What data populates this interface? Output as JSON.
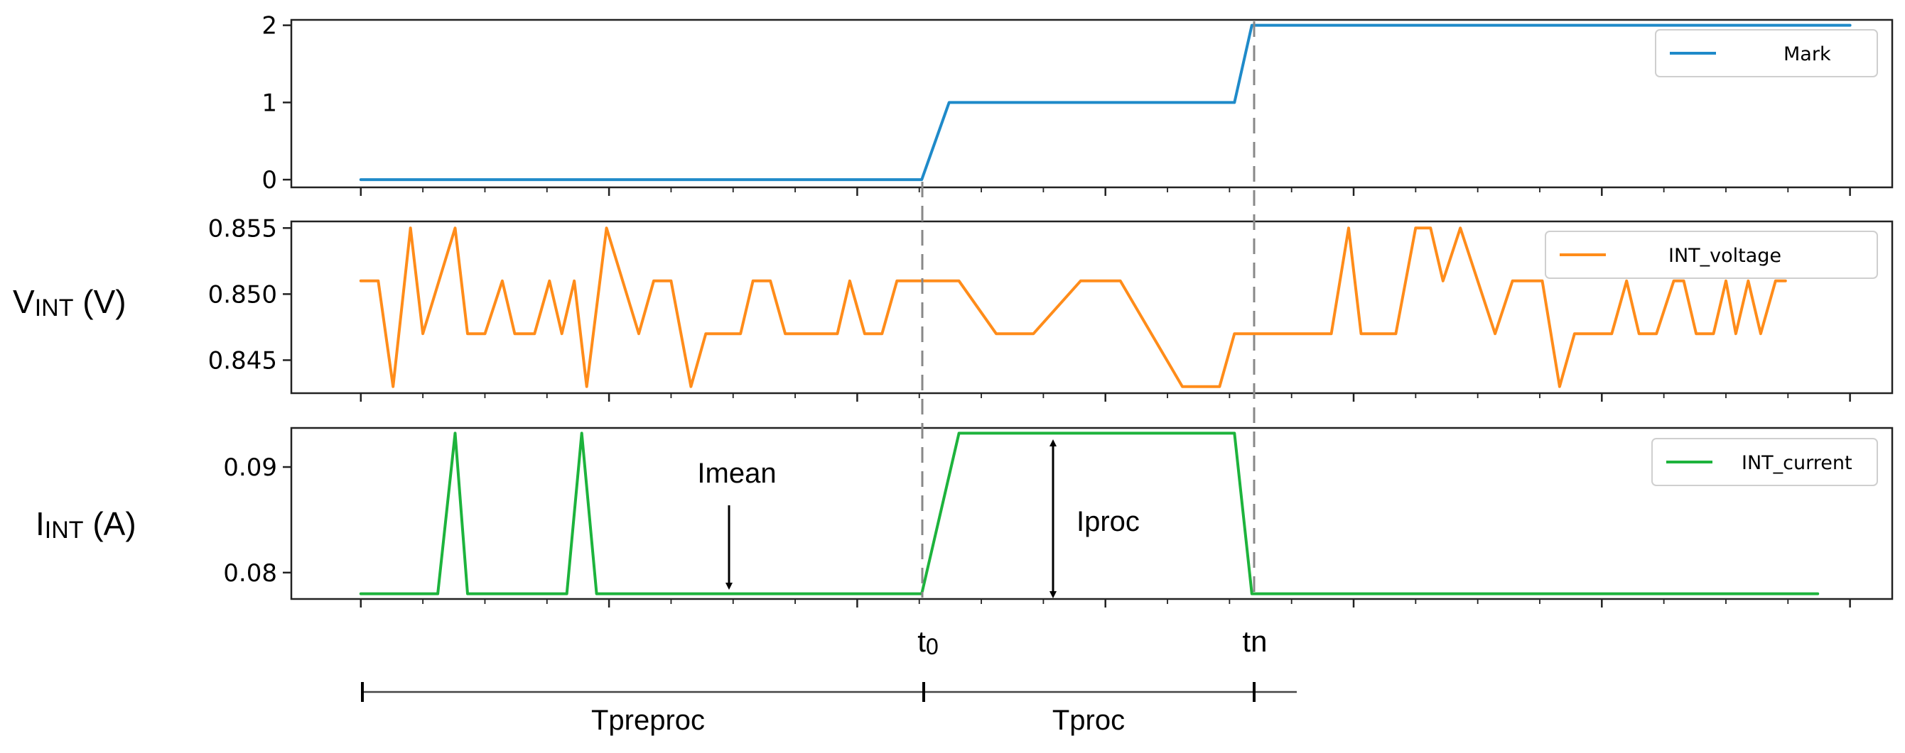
{
  "chart_data": [
    {
      "type": "line",
      "ylim": [
        -0.1,
        2.07
      ],
      "yticks": [
        0,
        1,
        2
      ],
      "ytick_labels": [
        "0",
        "1",
        "2"
      ],
      "ylabel": "",
      "series": [
        {
          "name": "Mark",
          "color": "#1f8ac9",
          "points": [
            [
              0,
              0
            ],
            [
              22.6,
              0
            ],
            [
              23.7,
              1
            ],
            [
              35.2,
              1
            ],
            [
              35.9,
              2
            ],
            [
              60,
              2
            ]
          ]
        }
      ],
      "legend": "Mark",
      "legend_position": "top-right"
    },
    {
      "type": "line",
      "ylim": [
        0.8425,
        0.8555
      ],
      "yticks": [
        0.845,
        0.85,
        0.855
      ],
      "ytick_labels": [
        "0.845",
        "0.850",
        "0.855"
      ],
      "ylabel_main": "V",
      "ylabel_sub": "INT",
      "ylabel_unit": " (V)",
      "series": [
        {
          "name": "INT_voltage",
          "color": "#ff8c1a",
          "points": [
            [
              0,
              0.851
            ],
            [
              0.7,
              0.851
            ],
            [
              1.3,
              0.843
            ],
            [
              2.0,
              0.855
            ],
            [
              2.5,
              0.847
            ],
            [
              3.8,
              0.855
            ],
            [
              4.3,
              0.847
            ],
            [
              5.0,
              0.847
            ],
            [
              5.7,
              0.851
            ],
            [
              6.2,
              0.847
            ],
            [
              7.0,
              0.847
            ],
            [
              7.6,
              0.851
            ],
            [
              8.1,
              0.847
            ],
            [
              8.6,
              0.851
            ],
            [
              9.1,
              0.843
            ],
            [
              9.9,
              0.855
            ],
            [
              11.2,
              0.847
            ],
            [
              11.8,
              0.851
            ],
            [
              12.5,
              0.851
            ],
            [
              13.3,
              0.843
            ],
            [
              13.9,
              0.847
            ],
            [
              15.3,
              0.847
            ],
            [
              15.8,
              0.851
            ],
            [
              16.5,
              0.851
            ],
            [
              17.1,
              0.847
            ],
            [
              19.2,
              0.847
            ],
            [
              19.7,
              0.851
            ],
            [
              20.3,
              0.847
            ],
            [
              21.0,
              0.847
            ],
            [
              21.6,
              0.851
            ],
            [
              24.1,
              0.851
            ],
            [
              25.6,
              0.847
            ],
            [
              27.1,
              0.847
            ],
            [
              29.0,
              0.851
            ],
            [
              30.6,
              0.851
            ],
            [
              33.1,
              0.843
            ],
            [
              34.6,
              0.843
            ],
            [
              35.2,
              0.847
            ],
            [
              39.1,
              0.847
            ],
            [
              39.8,
              0.855
            ],
            [
              40.3,
              0.847
            ],
            [
              41.7,
              0.847
            ],
            [
              42.5,
              0.855
            ],
            [
              43.1,
              0.855
            ],
            [
              43.6,
              0.851
            ],
            [
              44.3,
              0.855
            ],
            [
              45.7,
              0.847
            ],
            [
              46.4,
              0.851
            ],
            [
              47.6,
              0.851
            ],
            [
              48.3,
              0.843
            ],
            [
              48.9,
              0.847
            ],
            [
              50.4,
              0.847
            ],
            [
              51.0,
              0.851
            ],
            [
              51.5,
              0.847
            ],
            [
              52.2,
              0.847
            ],
            [
              52.9,
              0.851
            ],
            [
              53.3,
              0.851
            ],
            [
              53.8,
              0.847
            ],
            [
              54.5,
              0.847
            ],
            [
              55.0,
              0.851
            ],
            [
              55.4,
              0.847
            ],
            [
              55.9,
              0.851
            ],
            [
              56.4,
              0.847
            ],
            [
              57.0,
              0.851
            ],
            [
              57.4,
              0.851
            ]
          ]
        }
      ],
      "legend": "INT_voltage",
      "legend_position": "top-right"
    },
    {
      "type": "line",
      "ylim": [
        0.0775,
        0.0937
      ],
      "yticks": [
        0.08,
        0.09
      ],
      "ytick_labels": [
        "0.08",
        "0.09"
      ],
      "ylabel_main": "I",
      "ylabel_sub": "INT",
      "ylabel_unit": " (A)",
      "series": [
        {
          "name": "INT_current",
          "color": "#1db33c",
          "points": [
            [
              0,
              0.078
            ],
            [
              3.1,
              0.078
            ],
            [
              3.8,
              0.0932
            ],
            [
              4.3,
              0.078
            ],
            [
              8.3,
              0.078
            ],
            [
              8.9,
              0.0932
            ],
            [
              9.5,
              0.078
            ],
            [
              22.6,
              0.078
            ],
            [
              24.1,
              0.0932
            ],
            [
              35.2,
              0.0932
            ],
            [
              35.9,
              0.078
            ],
            [
              58.7,
              0.078
            ]
          ]
        }
      ],
      "legend": "INT_current",
      "legend_position": "top-right"
    }
  ],
  "x_axis": {
    "xlim": [
      -2.8,
      61.7
    ],
    "minor_tick_step": 2.5,
    "major_tick_step": 10,
    "tick_labels_shown": false
  },
  "annotations": {
    "t0": "t",
    "t0_sub": "0",
    "tn": "t",
    "tn_sub": "n",
    "imean": "Imean",
    "iproc": "Iproc",
    "tpreproc": "Tpreproc",
    "tproc": "Tproc"
  }
}
